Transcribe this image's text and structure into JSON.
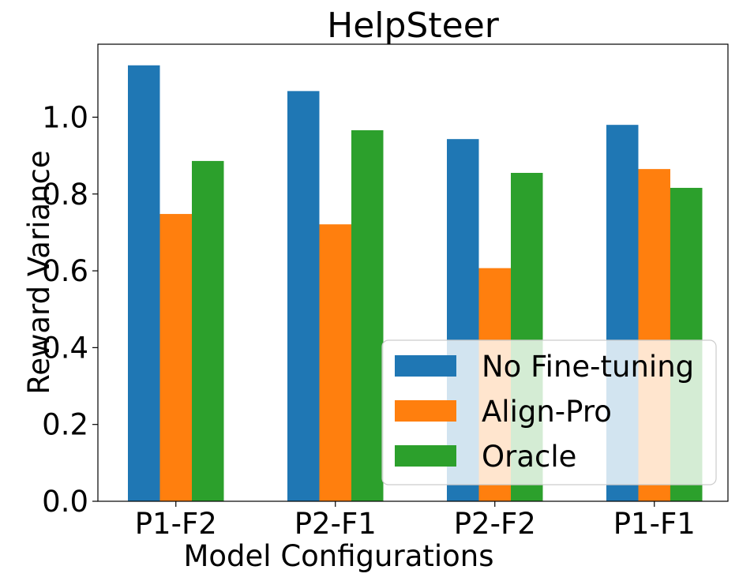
{
  "chart_data": {
    "type": "bar",
    "title": "HelpSteer",
    "xlabel": "Model Configurations",
    "ylabel": "Reward Variance",
    "categories": [
      "P1-F2",
      "P2-F1",
      "P2-F2",
      "P1-F1"
    ],
    "series": [
      {
        "name": "No Fine-tuning",
        "color": "#1f77b4",
        "values": [
          1.135,
          1.068,
          0.943,
          0.98
        ]
      },
      {
        "name": "Align-Pro",
        "color": "#ff7f0e",
        "values": [
          0.748,
          0.721,
          0.607,
          0.865
        ]
      },
      {
        "name": "Oracle",
        "color": "#2ca02c",
        "values": [
          0.886,
          0.966,
          0.855,
          0.816
        ]
      }
    ],
    "ylim": [
      0,
      1.19
    ],
    "yticks": [
      0.0,
      0.2,
      0.4,
      0.6,
      0.8,
      1.0
    ],
    "ytick_labels": [
      "0.0",
      "0.2",
      "0.4",
      "0.6",
      "0.8",
      "1.0"
    ],
    "legend_position": "lower-right",
    "grid": false
  }
}
